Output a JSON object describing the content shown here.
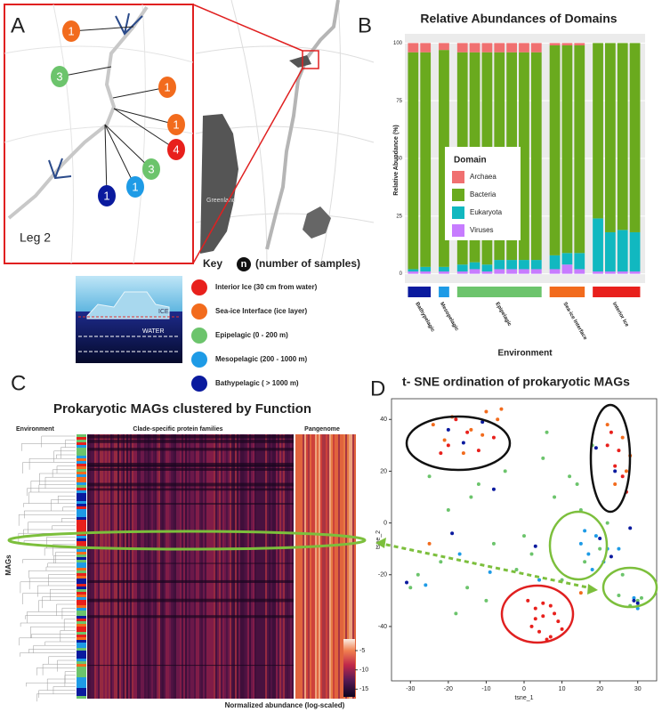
{
  "panel_labels": [
    "A",
    "B",
    "C",
    "D"
  ],
  "map": {
    "sites": [
      {
        "n": 1,
        "color": "#f26b1d"
      },
      {
        "n": 3,
        "color": "#6cc46c"
      },
      {
        "n": 1,
        "color": "#f26b1d"
      },
      {
        "n": 1,
        "color": "#f26b1d"
      },
      {
        "n": 4,
        "color": "#e8201c"
      },
      {
        "n": 3,
        "color": "#6cc46c"
      },
      {
        "n": 1,
        "color": "#1e9be6"
      },
      {
        "n": 1,
        "color": "#0a1a9e"
      }
    ],
    "region_label": "Leg 2",
    "land_label": "Greenland"
  },
  "key": {
    "title": "Key",
    "n_symbol": "n",
    "n_note": "(number of samples)",
    "ice": "ICE",
    "water": "WATER",
    "items": [
      {
        "label": "Interior Ice (30 cm from water)",
        "color": "#e8201c"
      },
      {
        "label": "Sea-ice Interface (ice layer)",
        "color": "#f26b1d"
      },
      {
        "label": "Epipelagic (0 - 200 m)",
        "color": "#6cc46c"
      },
      {
        "label": "Mesopelagic (200 - 1000 m)",
        "color": "#1e9be6"
      },
      {
        "label": "Bathypelagic ( > 1000 m)",
        "color": "#0a1a9e"
      }
    ]
  },
  "chart_data": [
    {
      "type": "stacked-bar",
      "title": "Relative Abundances of Domains",
      "x_label": "Environment",
      "y_label": "Relative Abundance (%)",
      "categories": [
        null,
        null,
        null,
        null,
        null,
        null,
        null,
        null,
        null,
        null,
        null,
        null,
        null,
        null,
        null,
        null,
        null
      ],
      "groups": [
        {
          "name": "Bathypelagic",
          "color": "#0a1a9e",
          "count": 2
        },
        {
          "name": "Mesopelagic",
          "color": "#1e9be6",
          "count": 1
        },
        {
          "name": "Epipelagic",
          "color": "#6cc46c",
          "count": 7
        },
        {
          "name": "Sea-ice Interface",
          "color": "#f26b1d",
          "count": 3
        },
        {
          "name": "Interior Ice",
          "color": "#e8201c",
          "count": 4
        }
      ],
      "legend_title": "Domain",
      "legend": "center",
      "series": [
        {
          "name": "Archaea",
          "color": "#f07070",
          "values": [
            4,
            4,
            3,
            4,
            4,
            4,
            4,
            4,
            4,
            4,
            1,
            1,
            1,
            0,
            0,
            0,
            0
          ]
        },
        {
          "name": "Bacteria",
          "color": "#6aaa1e",
          "values": [
            94,
            93,
            94,
            92,
            91,
            92,
            90,
            90,
            90,
            90,
            91,
            90,
            90,
            76,
            82,
            81,
            82
          ]
        },
        {
          "name": "Eukaryota",
          "color": "#11b8c0",
          "values": [
            1,
            2,
            2,
            3,
            3,
            3,
            4,
            4,
            4,
            4,
            6,
            5,
            7,
            23,
            17,
            18,
            17
          ]
        },
        {
          "name": "Viruses",
          "color": "#c77cff",
          "values": [
            1,
            1,
            1,
            1,
            2,
            1,
            2,
            2,
            2,
            2,
            2,
            4,
            2,
            1,
            1,
            1,
            1
          ]
        }
      ],
      "ylim": [
        -4,
        104
      ],
      "yticks": [
        0,
        25,
        50,
        75,
        100
      ],
      "grid": true
    },
    {
      "type": "heatmap",
      "title": "Prokaryotic MAGs clustered by Function",
      "row_label": "MAGs",
      "row_annotation_label": "Environment",
      "column_groups": [
        "Clade-specific protein families",
        "Pangenome"
      ],
      "colorbar": {
        "label": "Normalized abundance (log-scaled)",
        "clim": [
          -17,
          -2
        ],
        "ticks": [
          -5,
          -10,
          -15
        ]
      }
    },
    {
      "type": "scatter",
      "title": "t- SNE ordination of prokaryotic MAGs",
      "x_label": "tsne_1",
      "y_label": "tsne_2",
      "xlim": [
        -35,
        35
      ],
      "ylim": [
        -61,
        48
      ],
      "xticks": [
        -30,
        -20,
        -10,
        0,
        10,
        20,
        30
      ],
      "yticks": [
        -40,
        -20,
        0,
        20,
        40
      ],
      "grid": false,
      "series": [
        {
          "color": "#e8201c",
          "x": [
            1,
            3,
            5,
            7,
            9,
            2,
            4,
            6,
            8,
            10,
            3,
            5,
            7,
            -20,
            -15,
            -12,
            -18,
            -8,
            -22,
            22,
            24,
            26,
            25,
            27,
            23
          ],
          "values": [
            -30,
            -33,
            -36,
            -32,
            -38,
            -40,
            -42,
            -45,
            -35,
            -41,
            -37,
            -31,
            -44,
            30,
            35,
            28,
            40,
            33,
            27,
            30,
            22,
            18,
            28,
            12,
            35
          ]
        },
        {
          "color": "#f26b1d",
          "x": [
            -24,
            -19,
            -14,
            -10,
            -7,
            -21,
            -16,
            -11,
            -6,
            22,
            26,
            28,
            24,
            27,
            -25,
            15
          ],
          "values": [
            38,
            41,
            36,
            43,
            40,
            32,
            27,
            34,
            44,
            38,
            33,
            26,
            15,
            20,
            -8,
            -27
          ]
        },
        {
          "color": "#6cc46c",
          "x": [
            -28,
            -22,
            -15,
            -8,
            0,
            8,
            15,
            20,
            -25,
            -12,
            -5,
            5,
            12,
            18,
            25,
            30,
            -30,
            -18,
            -2,
            10,
            16,
            22,
            -20,
            -10,
            2,
            14,
            28,
            31,
            6,
            -14,
            26
          ],
          "values": [
            -20,
            -15,
            -25,
            -8,
            -5,
            10,
            5,
            -10,
            18,
            15,
            20,
            25,
            18,
            30,
            -28,
            -30,
            -25,
            -35,
            -18,
            -22,
            -15,
            0,
            5,
            -30,
            -12,
            15,
            -32,
            -29,
            35,
            10,
            -20
          ]
        },
        {
          "color": "#1e9be6",
          "x": [
            15,
            17,
            19,
            21,
            18,
            16,
            22,
            -26,
            -17,
            -9,
            4,
            29,
            30,
            25
          ],
          "values": [
            -8,
            -12,
            -5,
            -15,
            -18,
            -3,
            -10,
            -24,
            -12,
            -19,
            -22,
            -29,
            -33,
            -10
          ]
        },
        {
          "color": "#0a1a9e",
          "x": [
            -20,
            -16,
            -11,
            20,
            23,
            28,
            30,
            -31,
            -19,
            -8,
            3,
            29,
            19,
            24
          ],
          "values": [
            36,
            31,
            39,
            -6,
            -13,
            -2,
            -31,
            -23,
            -4,
            13,
            -9,
            -30,
            29,
            20
          ]
        }
      ]
    }
  ]
}
